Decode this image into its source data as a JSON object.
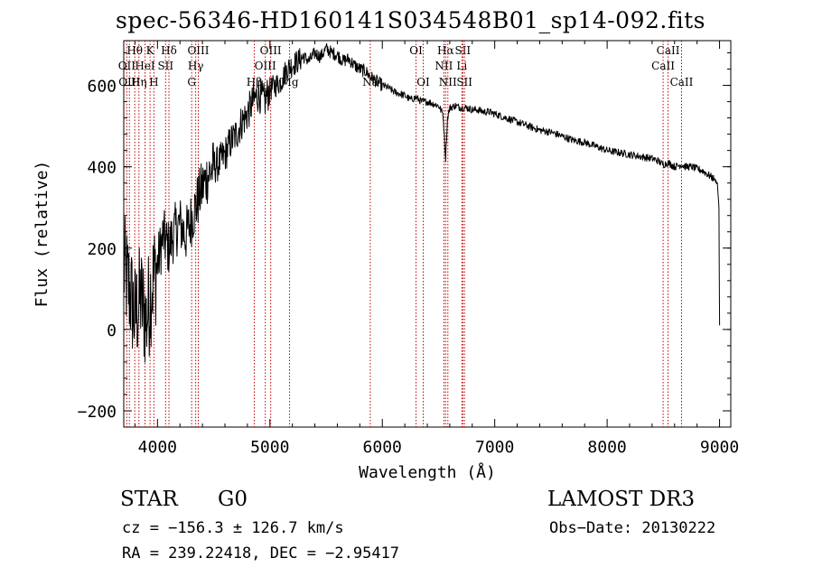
{
  "chart_data": {
    "type": "line",
    "title": "spec-56346-HD160141S034548B01_sp14-092.fits",
    "xlabel": "Wavelength (Å)",
    "ylabel": "Flux (relative)",
    "xlim": [
      3700,
      9100
    ],
    "ylim": [
      -240,
      710
    ],
    "x_ticks": [
      4000,
      5000,
      6000,
      7000,
      8000,
      9000
    ],
    "y_ticks": [
      -200,
      0,
      200,
      400,
      600
    ],
    "series": [
      {
        "name": "spectrum",
        "x": [
          3700,
          3750,
          3800,
          3850,
          3900,
          3950,
          4000,
          4050,
          4100,
          4150,
          4200,
          4250,
          4300,
          4350,
          4400,
          4450,
          4500,
          4550,
          4600,
          4650,
          4700,
          4750,
          4800,
          4850,
          4900,
          4950,
          5000,
          5050,
          5100,
          5150,
          5200,
          5250,
          5300,
          5350,
          5400,
          5450,
          5500,
          5550,
          5600,
          5650,
          5700,
          5750,
          5800,
          5850,
          5900,
          5950,
          6000,
          6050,
          6100,
          6150,
          6200,
          6250,
          6300,
          6350,
          6400,
          6450,
          6500,
          6540,
          6563,
          6580,
          6600,
          6650,
          6700,
          6750,
          6800,
          6850,
          6900,
          6950,
          7000,
          7100,
          7200,
          7300,
          7400,
          7500,
          7600,
          7700,
          7800,
          7900,
          8000,
          8100,
          8200,
          8300,
          8400,
          8450,
          8498,
          8542,
          8600,
          8662,
          8700,
          8750,
          8800,
          8850,
          8900,
          8950,
          8980,
          8995,
          9000
        ],
        "values": [
          150,
          100,
          30,
          80,
          20,
          110,
          160,
          230,
          200,
          240,
          260,
          230,
          270,
          310,
          350,
          380,
          400,
          410,
          430,
          460,
          480,
          510,
          530,
          560,
          580,
          560,
          590,
          600,
          610,
          640,
          650,
          660,
          670,
          660,
          680,
          670,
          690,
          680,
          675,
          660,
          665,
          650,
          640,
          635,
          620,
          610,
          600,
          595,
          585,
          580,
          575,
          565,
          570,
          560,
          560,
          555,
          550,
          530,
          420,
          520,
          545,
          550,
          545,
          545,
          540,
          540,
          535,
          535,
          530,
          520,
          510,
          500,
          490,
          485,
          475,
          465,
          460,
          450,
          440,
          435,
          430,
          425,
          420,
          415,
          405,
          410,
          400,
          405,
          400,
          400,
          395,
          390,
          380,
          370,
          360,
          300,
          10
        ]
      }
    ],
    "lines": [
      {
        "name": "Hθ",
        "x": 3798,
        "row": 0
      },
      {
        "name": "K",
        "x": 3934,
        "row": 0
      },
      {
        "name": "Hδ",
        "x": 4102,
        "row": 0
      },
      {
        "name": "OIII",
        "x": 4363,
        "row": 0
      },
      {
        "name": "OIII",
        "x": 5007,
        "row": 0
      },
      {
        "name": "OI",
        "x": 6300,
        "row": 0
      },
      {
        "name": "Hα",
        "x": 6563,
        "row": 0
      },
      {
        "name": "SII",
        "x": 6716,
        "row": 0
      },
      {
        "name": "CaII",
        "x": 8542,
        "row": 0
      },
      {
        "name": "OII",
        "x": 3727,
        "row": 1
      },
      {
        "name": "HeI",
        "x": 3889,
        "row": 1
      },
      {
        "name": "SII",
        "x": 4072,
        "row": 1
      },
      {
        "name": "Hγ",
        "x": 4340,
        "row": 1
      },
      {
        "name": "OIII",
        "x": 4959,
        "row": 1
      },
      {
        "name": "NII",
        "x": 6548,
        "row": 1
      },
      {
        "name": "Li",
        "x": 6708,
        "row": 1
      },
      {
        "name": "CaII",
        "x": 8498,
        "row": 1
      },
      {
        "name": "OIII",
        "x": 3750,
        "row": 2
      },
      {
        "name": "Hη",
        "x": 3835,
        "row": 2
      },
      {
        "name": "H",
        "x": 3968,
        "row": 2
      },
      {
        "name": "G",
        "x": 4304,
        "row": 2
      },
      {
        "name": "Hβ",
        "x": 4861,
        "row": 2
      },
      {
        "name": "Mg",
        "x": 5175,
        "row": 2
      },
      {
        "name": "Na",
        "x": 5893,
        "row": 2
      },
      {
        "name": "OI",
        "x": 6364,
        "row": 2
      },
      {
        "name": "NII",
        "x": 6583,
        "row": 2
      },
      {
        "name": "SII",
        "x": 6731,
        "row": 2
      },
      {
        "name": "CaII",
        "x": 8662,
        "row": 2
      }
    ]
  },
  "info": {
    "object_class": "STAR",
    "subclass": "G0",
    "survey": "LAMOST DR3",
    "redshift": "cz = −156.3 ± 126.7 km/s",
    "obs_date": "Obs−Date: 20130222",
    "coords": "RA = 239.22418, DEC =  −2.95417"
  }
}
